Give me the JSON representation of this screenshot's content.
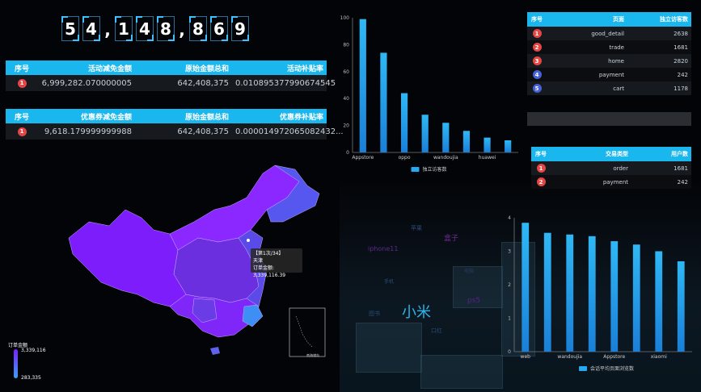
{
  "counter": {
    "chars": [
      "5",
      "4",
      ",",
      "1",
      "4",
      "8",
      ",",
      "8",
      "6",
      "9"
    ]
  },
  "activity_table": {
    "headers": [
      "序号",
      "活动减免金额",
      "原始金额总和",
      "活动补贴率"
    ],
    "rows": [
      {
        "rank": "1",
        "discount": "6,999,282.070000005",
        "original": "642,408,375",
        "rate": "0.010895377990674545"
      }
    ]
  },
  "coupon_table": {
    "headers": [
      "序号",
      "优惠券减免金额",
      "原始金额总和",
      "优惠券补贴率"
    ],
    "rows": [
      {
        "rank": "1",
        "discount": "9,618.179999999988",
        "original": "642,408,375",
        "rate": "0.000014972065082432..."
      }
    ]
  },
  "page_table": {
    "headers": [
      "序号",
      "页面",
      "独立访客数"
    ],
    "rows": [
      {
        "rank": "1",
        "page": "good_detail",
        "uv": "2638"
      },
      {
        "rank": "2",
        "page": "trade",
        "uv": "1681"
      },
      {
        "rank": "3",
        "page": "home",
        "uv": "2820"
      },
      {
        "rank": "4",
        "page": "payment",
        "uv": "242"
      },
      {
        "rank": "5",
        "page": "cart",
        "uv": "1178"
      }
    ]
  },
  "trade_table": {
    "headers": [
      "序号",
      "交易类型",
      "用户数"
    ],
    "rows": [
      {
        "rank": "1",
        "type": "order",
        "users": "1681"
      },
      {
        "rank": "2",
        "type": "payment",
        "users": "242"
      }
    ]
  },
  "map": {
    "tooltip_line1": "【第1次/34】",
    "tooltip_line2": "天津",
    "tooltip_line3": "订单金额: 3,339,116.39",
    "legend_title": "订单金额",
    "legend_max": "3,339,116",
    "legend_min": "283,335",
    "inset_label": "南海诸岛",
    "color_high": "#7b1fff",
    "color_low": "#36a3f7"
  },
  "word_cloud": [
    {
      "text": "小米",
      "color": "#2fb4ea",
      "size": 18
    },
    {
      "text": "盒子",
      "color": "#6f2a9c",
      "size": 9
    },
    {
      "text": "iphone11",
      "color": "#5a2a88",
      "size": 8
    },
    {
      "text": "ps5",
      "color": "#5a1f8a",
      "size": 9
    },
    {
      "text": "苹果",
      "color": "#2a4a78",
      "size": 7
    },
    {
      "text": "手机",
      "color": "#2a4a78",
      "size": 6
    },
    {
      "text": "图书",
      "color": "#2a4a78",
      "size": 7
    },
    {
      "text": "口红",
      "color": "#2a4a78",
      "size": 7
    },
    {
      "text": "电脑",
      "color": "#2a3a60",
      "size": 6
    }
  ],
  "chart_data": [
    {
      "type": "bar",
      "categories": [
        "Appstore",
        "",
        "oppo",
        "",
        "wandoujia",
        "",
        "huawei",
        ""
      ],
      "values": [
        99,
        74,
        44,
        28,
        22,
        16,
        11,
        9
      ],
      "ylim": [
        0,
        100
      ],
      "yticks": [
        0,
        20,
        40,
        60,
        80,
        100
      ],
      "legend": "独立访客数",
      "color": "#25a9f2"
    },
    {
      "type": "bar",
      "categories": [
        "web",
        "",
        "wandoujia",
        "",
        "Appstore",
        "",
        "xiaomi",
        ""
      ],
      "values": [
        3.85,
        3.55,
        3.5,
        3.45,
        3.3,
        3.2,
        3.0,
        2.7
      ],
      "ylim": [
        0,
        4
      ],
      "yticks": [
        0,
        1,
        2,
        3,
        4
      ],
      "legend": "会话平均页面浏览数",
      "color": "#25a9f2"
    }
  ]
}
